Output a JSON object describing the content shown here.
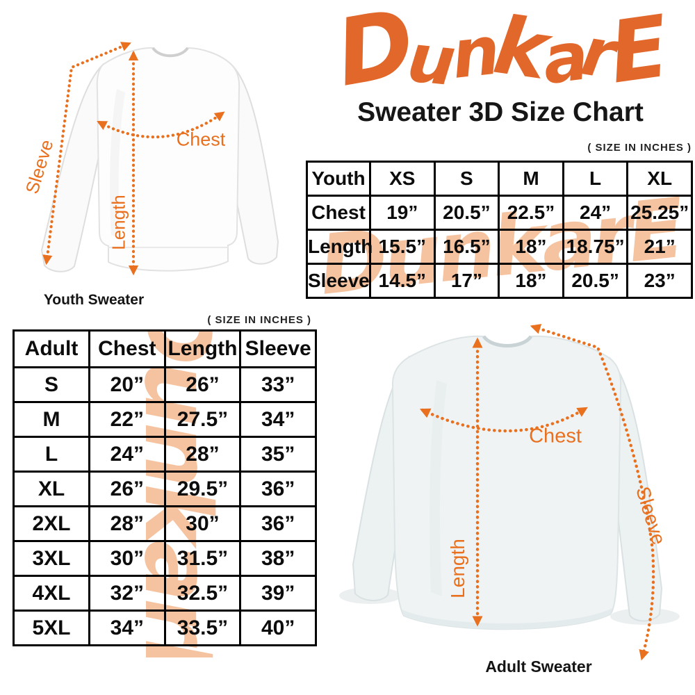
{
  "brand": {
    "logo_text": "DunkarE",
    "logo_color": "#E2672A"
  },
  "header": {
    "title": "Sweater 3D Size Chart",
    "size_note": "( SIZE IN INCHES )"
  },
  "diagrams": {
    "youth": {
      "caption": "Youth Sweater",
      "labels": {
        "sleeve": "Sleeve",
        "length": "Length",
        "chest": "Chest"
      }
    },
    "adult": {
      "caption": "Adult Sweater",
      "labels": {
        "sleeve": "Sleeve",
        "length": "Length",
        "chest": "Chest"
      }
    }
  },
  "colors": {
    "accent_orange": "#E8701E",
    "logo_orange": "#E2672A",
    "watermark_peach": "#F5C3A0",
    "table_border": "#000000"
  },
  "chart_data": [
    {
      "type": "table",
      "columns": [
        "Youth",
        "XS",
        "S",
        "M",
        "L",
        "XL"
      ],
      "rows": [
        [
          "Chest",
          "19”",
          "20.5”",
          "22.5”",
          "24”",
          "25.25”"
        ],
        [
          "Length",
          "15.5”",
          "16.5”",
          "18”",
          "18.75”",
          "21”"
        ],
        [
          "Sleeve",
          "14.5”",
          "17”",
          "18”",
          "20.5”",
          "23”"
        ]
      ]
    },
    {
      "type": "table",
      "columns": [
        "Adult",
        "Chest",
        "Length",
        "Sleeve"
      ],
      "rows": [
        [
          "S",
          "20”",
          "26”",
          "33”"
        ],
        [
          "M",
          "22”",
          "27.5”",
          "34”"
        ],
        [
          "L",
          "24”",
          "28”",
          "35”"
        ],
        [
          "XL",
          "26”",
          "29.5”",
          "36”"
        ],
        [
          "2XL",
          "28”",
          "30”",
          "36”"
        ],
        [
          "3XL",
          "30”",
          "31.5”",
          "38”"
        ],
        [
          "4XL",
          "32”",
          "32.5”",
          "39”"
        ],
        [
          "5XL",
          "34”",
          "33.5”",
          "40”"
        ]
      ]
    }
  ]
}
